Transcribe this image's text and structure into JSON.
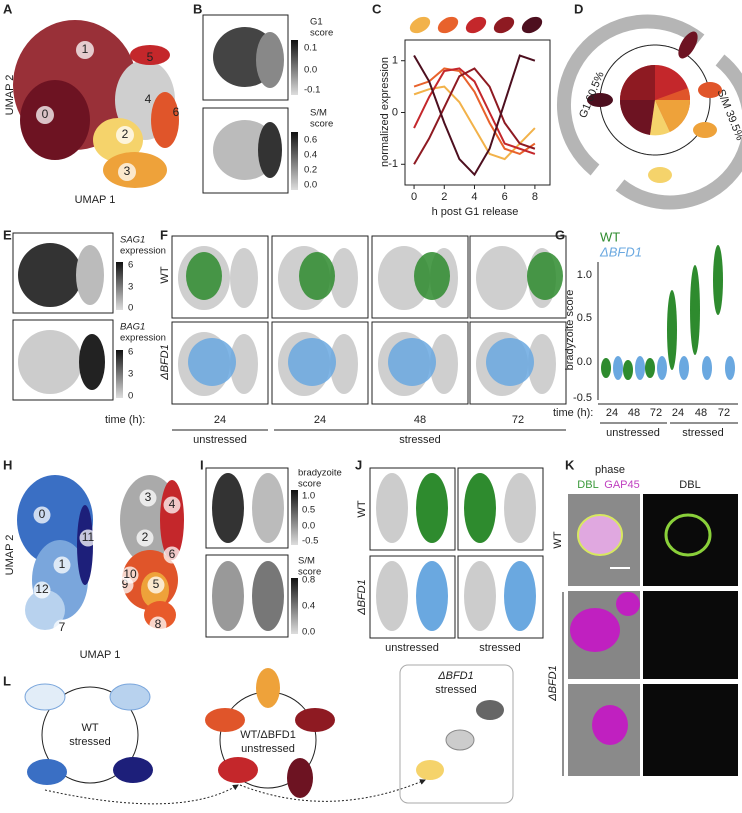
{
  "panel_A": {
    "letter": "A",
    "x_label": "UMAP 1",
    "y_label": "UMAP 2",
    "clusters": [
      "0",
      "1",
      "2",
      "3",
      "4",
      "5",
      "6"
    ]
  },
  "panel_B": {
    "letter": "B",
    "g1_label": [
      "G1",
      "score"
    ],
    "g1_ticks": [
      "0.1",
      "0.0",
      "-0.1"
    ],
    "sm_label": [
      "S/M",
      "score"
    ],
    "sm_ticks": [
      "0.6",
      "0.4",
      "0.2",
      "0.0"
    ]
  },
  "panel_C": {
    "letter": "C",
    "type": "line",
    "y_label": "normalized expression",
    "x_label": "h post G1 release",
    "x": [
      0,
      1,
      2,
      3,
      4,
      5,
      6,
      7,
      8
    ],
    "xlim": [
      -0.6,
      9
    ],
    "ylim": [
      -1.4,
      1.4
    ],
    "xticks": [
      0,
      2,
      4,
      6,
      8
    ],
    "yticks": [
      -1,
      0,
      1
    ],
    "series": [
      {
        "color": "#f2b24a",
        "values": [
          0.35,
          0.45,
          0.5,
          0.2,
          -0.3,
          -0.8,
          -0.9,
          -0.6,
          -0.3
        ]
      },
      {
        "color": "#e8622c",
        "values": [
          0.5,
          0.6,
          0.85,
          0.8,
          0.4,
          -0.2,
          -0.7,
          -0.8,
          -0.6
        ]
      },
      {
        "color": "#c4272b",
        "values": [
          -0.3,
          0.3,
          0.8,
          0.85,
          0.6,
          0.0,
          -0.6,
          -0.7,
          -0.8
        ]
      },
      {
        "color": "#8e1a22",
        "values": [
          -1.0,
          -0.5,
          0.1,
          0.7,
          0.85,
          0.5,
          -0.2,
          -0.6,
          -0.7
        ]
      },
      {
        "color": "#4d0f1f",
        "values": [
          1.1,
          0.6,
          -0.2,
          -0.9,
          -1.2,
          -0.7,
          0.2,
          1.1,
          1.0
        ]
      }
    ]
  },
  "panel_D": {
    "letter": "D",
    "g1_label": "G1 60.5%",
    "sm_label": "S/M 39.5%"
  },
  "panel_E": {
    "letter": "E",
    "top_gene": "SAG1",
    "top_label": "expression",
    "top_ticks": [
      "6",
      "3",
      "0"
    ],
    "bottom_gene": "BAG1",
    "bottom_label": "expression",
    "bottom_ticks": [
      "6",
      "3",
      "0"
    ]
  },
  "panel_F": {
    "letter": "F",
    "rows": [
      "WT",
      "ΔBFD1"
    ],
    "time_label": "time (h):",
    "times": [
      "24",
      "24",
      "48",
      "72"
    ],
    "conditions": [
      "unstressed",
      "stressed"
    ]
  },
  "panel_G": {
    "letter": "G",
    "legend": [
      "WT",
      "ΔBFD1"
    ],
    "y_label": "bradyzoite score",
    "yticks": [
      "1.0",
      "0.5",
      "0.0",
      "-0.5"
    ],
    "time_label": "time (h):",
    "times": [
      "24",
      "48",
      "72",
      "24",
      "48",
      "72"
    ],
    "conditions": [
      "unstressed",
      "stressed"
    ]
  },
  "panel_H": {
    "letter": "H",
    "x_label": "UMAP 1",
    "y_label": "UMAP 2",
    "clusters": [
      "0",
      "1",
      "2",
      "3",
      "4",
      "5",
      "6",
      "7",
      "8",
      "9",
      "10",
      "11",
      "12"
    ]
  },
  "panel_I": {
    "letter": "I",
    "top_label": [
      "bradyzoite",
      "score"
    ],
    "top_ticks": [
      "1.0",
      "0.5",
      "0.0",
      "-0.5"
    ],
    "bottom_label": [
      "S/M",
      "score"
    ],
    "bottom_ticks": [
      "0.8",
      "0.4",
      "0.0"
    ]
  },
  "panel_J": {
    "letter": "J",
    "rows": [
      "WT",
      "ΔBFD1"
    ],
    "columns": [
      "unstressed",
      "stressed"
    ]
  },
  "panel_K": {
    "letter": "K",
    "channels": [
      "phase",
      "DBL",
      "GAP45",
      "DBL"
    ],
    "rows": [
      "WT",
      "ΔBFD1"
    ]
  },
  "panel_L": {
    "letter": "L",
    "groups": [
      [
        "WT",
        "stressed"
      ],
      [
        "WT/ΔBFD1",
        "unstressed"
      ],
      [
        "ΔBFD1",
        "stressed"
      ]
    ]
  }
}
